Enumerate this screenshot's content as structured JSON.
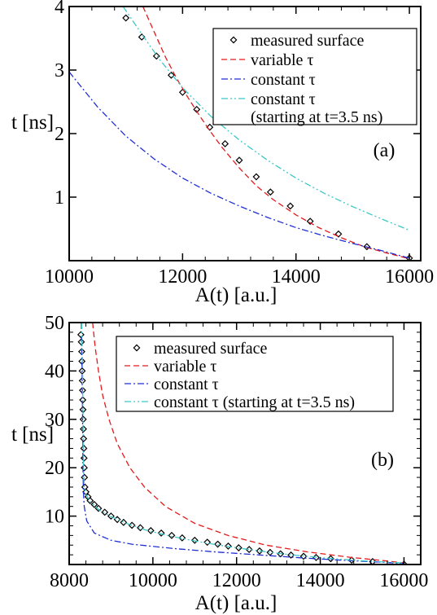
{
  "chart_data": [
    {
      "type": "line",
      "panel_label": "(a)",
      "xlabel": "A(t) [a.u.]",
      "ylabel": "t [ns]",
      "xlim": [
        10000,
        16200
      ],
      "ylim": [
        0,
        4
      ],
      "xticks": [
        10000,
        12000,
        14000,
        16000
      ],
      "yticks": [
        1,
        2,
        3,
        4
      ],
      "minor_ticks": true,
      "grid": false,
      "legend_position": "top-right",
      "series": [
        {
          "name": "measured surface",
          "style": "markers",
          "marker": "diamond",
          "color": "#000000",
          "points": [
            [
              11000,
              3.82
            ],
            [
              11280,
              3.52
            ],
            [
              11540,
              3.22
            ],
            [
              11800,
              2.92
            ],
            [
              12000,
              2.65
            ],
            [
              12250,
              2.38
            ],
            [
              12480,
              2.1
            ],
            [
              12750,
              1.84
            ],
            [
              13000,
              1.58
            ],
            [
              13300,
              1.32
            ],
            [
              13550,
              1.08
            ],
            [
              13900,
              0.86
            ],
            [
              14250,
              0.62
            ],
            [
              14750,
              0.42
            ],
            [
              15250,
              0.22
            ],
            [
              16000,
              0.04
            ]
          ]
        },
        {
          "name": "variable τ",
          "style": "dashed",
          "color": "#e41a1c",
          "points": [
            [
              11300,
              4.0
            ],
            [
              11500,
              3.6
            ],
            [
              11700,
              3.2
            ],
            [
              11900,
              2.86
            ],
            [
              12100,
              2.56
            ],
            [
              12300,
              2.28
            ],
            [
              12500,
              2.02
            ],
            [
              12700,
              1.78
            ],
            [
              13000,
              1.46
            ],
            [
              13300,
              1.18
            ],
            [
              13600,
              0.96
            ],
            [
              14000,
              0.72
            ],
            [
              14400,
              0.52
            ],
            [
              14800,
              0.36
            ],
            [
              15200,
              0.22
            ],
            [
              15600,
              0.12
            ],
            [
              16000,
              0.03
            ]
          ]
        },
        {
          "name": "constant τ",
          "style": "dashdot",
          "color": "#1f2fd4",
          "points": [
            [
              10000,
              2.97
            ],
            [
              10500,
              2.42
            ],
            [
              11000,
              1.96
            ],
            [
              11500,
              1.6
            ],
            [
              12000,
              1.3
            ],
            [
              12500,
              1.06
            ],
            [
              13000,
              0.86
            ],
            [
              13500,
              0.68
            ],
            [
              14000,
              0.52
            ],
            [
              14500,
              0.39
            ],
            [
              15000,
              0.27
            ],
            [
              15500,
              0.16
            ],
            [
              16000,
              0.04
            ]
          ]
        },
        {
          "name": "constant τ",
          "name_line2": "(starting at t=3.5 ns)",
          "style": "dashdotdot",
          "color": "#3cc8c8",
          "points": [
            [
              10950,
              4.0
            ],
            [
              11300,
              3.54
            ],
            [
              11600,
              3.16
            ],
            [
              12000,
              2.72
            ],
            [
              12500,
              2.27
            ],
            [
              13000,
              1.9
            ],
            [
              13500,
              1.58
            ],
            [
              14000,
              1.3
            ],
            [
              14500,
              1.06
            ],
            [
              15000,
              0.85
            ],
            [
              15500,
              0.66
            ],
            [
              16000,
              0.48
            ]
          ]
        }
      ]
    },
    {
      "type": "line",
      "panel_label": "(b)",
      "xlabel": "A(t) [a.u.]",
      "ylabel": "t [ns]",
      "xlim": [
        8000,
        16400
      ],
      "ylim": [
        0,
        50
      ],
      "xticks": [
        8000,
        10000,
        12000,
        14000,
        16000
      ],
      "yticks": [
        10,
        20,
        30,
        40,
        50
      ],
      "minor_ticks": true,
      "grid": false,
      "legend_position": "top-right",
      "series": [
        {
          "name": "measured surface",
          "style": "markers",
          "marker": "diamond",
          "color": "#000000",
          "points": [
            [
              8280,
              47.5
            ],
            [
              8290,
              46
            ],
            [
              8300,
              44
            ],
            [
              8305,
              42
            ],
            [
              8310,
              40
            ],
            [
              8315,
              38
            ],
            [
              8320,
              36
            ],
            [
              8325,
              34
            ],
            [
              8330,
              32
            ],
            [
              8335,
              30
            ],
            [
              8340,
              28
            ],
            [
              8345,
              26
            ],
            [
              8350,
              24
            ],
            [
              8355,
              22
            ],
            [
              8360,
              20
            ],
            [
              8365,
              18
            ],
            [
              8375,
              16
            ],
            [
              8400,
              15
            ],
            [
              8450,
              14
            ],
            [
              8500,
              13.2
            ],
            [
              8600,
              12.4
            ],
            [
              8700,
              11.6
            ],
            [
              8850,
              10.8
            ],
            [
              9000,
              10.0
            ],
            [
              9150,
              9.3
            ],
            [
              9300,
              8.7
            ],
            [
              9500,
              8.1
            ],
            [
              9700,
              7.6
            ],
            [
              9950,
              7.0
            ],
            [
              10200,
              6.5
            ],
            [
              10450,
              6.0
            ],
            [
              10700,
              5.5
            ],
            [
              11000,
              5.0
            ],
            [
              11300,
              4.6
            ],
            [
              11550,
              4.2
            ],
            [
              11800,
              3.8
            ],
            [
              12050,
              3.45
            ],
            [
              12300,
              3.1
            ],
            [
              12550,
              2.8
            ],
            [
              12800,
              2.5
            ],
            [
              13050,
              2.2
            ],
            [
              13300,
              1.95
            ],
            [
              13600,
              1.7
            ],
            [
              13900,
              1.45
            ],
            [
              14250,
              1.2
            ],
            [
              14750,
              0.9
            ],
            [
              15250,
              0.6
            ],
            [
              16000,
              0.05
            ]
          ]
        },
        {
          "name": "variable τ",
          "style": "dashed",
          "color": "#e41a1c",
          "points": [
            [
              8560,
              50
            ],
            [
              8620,
              45
            ],
            [
              8700,
              40
            ],
            [
              8800,
              35
            ],
            [
              8950,
              30
            ],
            [
              9150,
              25
            ],
            [
              9450,
              20
            ],
            [
              9800,
              16
            ],
            [
              10300,
              12
            ],
            [
              11000,
              8.5
            ],
            [
              11800,
              6
            ],
            [
              12700,
              4
            ],
            [
              13700,
              2.6
            ],
            [
              14700,
              1.5
            ],
            [
              15500,
              0.8
            ],
            [
              16000,
              0.3
            ]
          ]
        },
        {
          "name": "constant τ",
          "style": "dashdot",
          "color": "#1f2fd4",
          "points": [
            [
              8290,
              50
            ],
            [
              8300,
              45
            ],
            [
              8310,
              40
            ],
            [
              8315,
              35
            ],
            [
              8320,
              30
            ],
            [
              8325,
              25
            ],
            [
              8330,
              20
            ],
            [
              8340,
              15
            ],
            [
              8360,
              12
            ],
            [
              8420,
              9
            ],
            [
              8600,
              6.5
            ],
            [
              9000,
              5
            ],
            [
              9500,
              4.2
            ],
            [
              10500,
              3.3
            ],
            [
              11500,
              2.6
            ],
            [
              12500,
              2
            ],
            [
              13500,
              1.4
            ],
            [
              14500,
              0.9
            ],
            [
              15500,
              0.45
            ],
            [
              16000,
              0.2
            ]
          ]
        },
        {
          "name": "constant τ (starting at t=3.5 ns)",
          "style": "dashdotdot",
          "color": "#3cc8c8",
          "points": [
            [
              8300,
              50
            ],
            [
              8310,
              45
            ],
            [
              8320,
              40
            ],
            [
              8325,
              35
            ],
            [
              8330,
              30
            ],
            [
              8335,
              25
            ],
            [
              8345,
              20
            ],
            [
              8360,
              16
            ],
            [
              8400,
              14.5
            ],
            [
              8500,
              13
            ],
            [
              8700,
              11.4
            ],
            [
              9000,
              9.9
            ],
            [
              9400,
              8.4
            ],
            [
              9800,
              7.2
            ],
            [
              10300,
              6.1
            ],
            [
              10800,
              5.2
            ],
            [
              11300,
              4.4
            ],
            [
              11800,
              3.7
            ],
            [
              12300,
              3.1
            ],
            [
              12800,
              2.5
            ],
            [
              13300,
              2.0
            ],
            [
              13800,
              1.6
            ],
            [
              14300,
              1.2
            ],
            [
              14800,
              0.9
            ],
            [
              15300,
              0.6
            ],
            [
              16000,
              0.3
            ]
          ]
        }
      ]
    }
  ]
}
